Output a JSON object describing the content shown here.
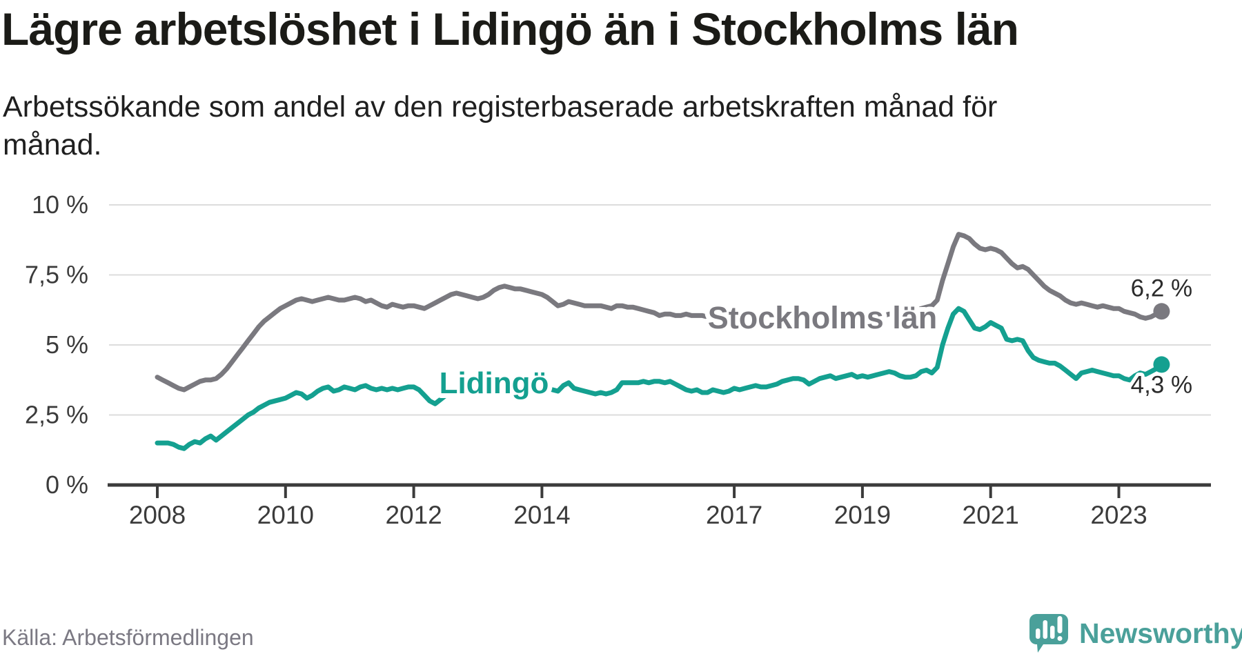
{
  "title": "Lägre arbetslöshet i Lidingö än i Stockholms län",
  "subtitle": "Arbetssökande som andel av den registerbaserade arbetskraften månad för\nmånad.",
  "source": "Källa: Arbetsförmedlingen",
  "logo": {
    "text": "Newsworthy",
    "color": "#4aa09a"
  },
  "colors": {
    "title": "#1b1b17",
    "axis_text": "#3b3b3b",
    "axis_line": "#3b3b3b",
    "gridline": "#dcdcdc",
    "stockholm_line": "#7a797f",
    "lidingo_line": "#14a090",
    "end_label_text": "#2b2b2b",
    "source_text": "#7b7983"
  },
  "chart_data": {
    "type": "line",
    "title": "Lägre arbetslöshet i Lidingö än i Stockholms län",
    "xlabel": "",
    "ylabel": "Arbetssökande som andel av den registerbaserade arbetskraften",
    "x_unit": "monthly from January 2008 to September 2023",
    "x_start_year": 2008,
    "x_months_per_step": 1,
    "ylim": [
      0,
      10
    ],
    "grid": true,
    "y_ticks": [
      {
        "value": 0,
        "label": "0 %"
      },
      {
        "value": 2.5,
        "label": "2,5 %"
      },
      {
        "value": 5,
        "label": "5 %"
      },
      {
        "value": 7.5,
        "label": "7,5 %"
      },
      {
        "value": 10,
        "label": "10 %"
      }
    ],
    "x_ticks": [
      {
        "year": 2008,
        "label": "2008"
      },
      {
        "year": 2010,
        "label": "2010"
      },
      {
        "year": 2012,
        "label": "2012"
      },
      {
        "year": 2014,
        "label": "2014"
      },
      {
        "year": 2017,
        "label": "2017"
      },
      {
        "year": 2019,
        "label": "2019"
      },
      {
        "year": 2021,
        "label": "2021"
      },
      {
        "year": 2023,
        "label": "2023"
      }
    ],
    "series": [
      {
        "name": "Stockholms län",
        "color": "#7a797f",
        "end_label": "6,2 %",
        "end_value": 6.2,
        "values": [
          3.85,
          3.75,
          3.65,
          3.55,
          3.45,
          3.4,
          3.5,
          3.6,
          3.7,
          3.75,
          3.75,
          3.8,
          3.95,
          4.15,
          4.4,
          4.65,
          4.9,
          5.15,
          5.4,
          5.65,
          5.85,
          6.0,
          6.15,
          6.3,
          6.4,
          6.5,
          6.6,
          6.65,
          6.6,
          6.55,
          6.6,
          6.65,
          6.7,
          6.65,
          6.6,
          6.6,
          6.65,
          6.7,
          6.65,
          6.55,
          6.6,
          6.5,
          6.4,
          6.35,
          6.45,
          6.4,
          6.35,
          6.4,
          6.4,
          6.35,
          6.3,
          6.4,
          6.5,
          6.6,
          6.7,
          6.8,
          6.85,
          6.8,
          6.75,
          6.7,
          6.65,
          6.7,
          6.8,
          6.95,
          7.05,
          7.1,
          7.05,
          7.0,
          7.0,
          6.95,
          6.9,
          6.85,
          6.8,
          6.7,
          6.55,
          6.4,
          6.45,
          6.55,
          6.5,
          6.45,
          6.4,
          6.4,
          6.4,
          6.4,
          6.35,
          6.3,
          6.4,
          6.4,
          6.35,
          6.35,
          6.3,
          6.25,
          6.2,
          6.15,
          6.05,
          6.1,
          6.1,
          6.05,
          6.05,
          6.1,
          6.05,
          6.05,
          6.05,
          6.0,
          6.0,
          5.95,
          5.95,
          5.95,
          5.95,
          5.9,
          5.9,
          5.85,
          5.85,
          5.8,
          5.8,
          5.8,
          5.75,
          5.75,
          5.75,
          5.75,
          5.75,
          5.7,
          5.7,
          5.65,
          5.65,
          5.7,
          5.7,
          5.75,
          5.75,
          5.8,
          5.85,
          5.9,
          5.95,
          6.0,
          6.0,
          6.05,
          6.05,
          6.1,
          6.1,
          6.15,
          6.15,
          6.2,
          6.25,
          6.3,
          6.35,
          6.4,
          6.6,
          7.3,
          7.9,
          8.5,
          8.95,
          8.9,
          8.8,
          8.6,
          8.45,
          8.4,
          8.45,
          8.4,
          8.3,
          8.1,
          7.9,
          7.75,
          7.8,
          7.7,
          7.5,
          7.3,
          7.1,
          6.95,
          6.85,
          6.75,
          6.6,
          6.5,
          6.45,
          6.5,
          6.45,
          6.4,
          6.35,
          6.4,
          6.35,
          6.3,
          6.3,
          6.2,
          6.15,
          6.1,
          6.0,
          5.95,
          6.0,
          6.1,
          6.2
        ]
      },
      {
        "name": "Lidingö",
        "color": "#14a090",
        "end_label": "4,3 %",
        "end_value": 4.3,
        "values": [
          1.5,
          1.5,
          1.5,
          1.45,
          1.35,
          1.3,
          1.45,
          1.55,
          1.5,
          1.65,
          1.75,
          1.6,
          1.75,
          1.9,
          2.05,
          2.2,
          2.35,
          2.5,
          2.6,
          2.75,
          2.85,
          2.95,
          3.0,
          3.05,
          3.1,
          3.2,
          3.3,
          3.25,
          3.1,
          3.2,
          3.35,
          3.45,
          3.5,
          3.35,
          3.4,
          3.5,
          3.45,
          3.4,
          3.5,
          3.55,
          3.45,
          3.4,
          3.45,
          3.4,
          3.45,
          3.4,
          3.45,
          3.5,
          3.5,
          3.4,
          3.2,
          3.0,
          2.9,
          3.05,
          3.2,
          3.3,
          3.4,
          3.45,
          3.4,
          3.45,
          3.5,
          3.45,
          3.5,
          3.55,
          3.5,
          3.45,
          3.5,
          3.55,
          3.5,
          3.55,
          3.5,
          3.55,
          3.5,
          3.45,
          3.4,
          3.35,
          3.55,
          3.65,
          3.45,
          3.4,
          3.35,
          3.3,
          3.25,
          3.3,
          3.25,
          3.3,
          3.4,
          3.65,
          3.65,
          3.65,
          3.65,
          3.7,
          3.65,
          3.7,
          3.7,
          3.65,
          3.7,
          3.6,
          3.5,
          3.4,
          3.35,
          3.4,
          3.3,
          3.3,
          3.4,
          3.35,
          3.3,
          3.35,
          3.45,
          3.4,
          3.45,
          3.5,
          3.55,
          3.5,
          3.5,
          3.55,
          3.6,
          3.7,
          3.75,
          3.8,
          3.8,
          3.75,
          3.6,
          3.7,
          3.8,
          3.85,
          3.9,
          3.8,
          3.85,
          3.9,
          3.95,
          3.85,
          3.9,
          3.85,
          3.9,
          3.95,
          4.0,
          4.05,
          4.0,
          3.9,
          3.85,
          3.85,
          3.9,
          4.05,
          4.1,
          4.0,
          4.2,
          5.0,
          5.6,
          6.1,
          6.3,
          6.2,
          5.9,
          5.6,
          5.55,
          5.65,
          5.8,
          5.7,
          5.6,
          5.2,
          5.15,
          5.2,
          5.15,
          4.8,
          4.55,
          4.45,
          4.4,
          4.35,
          4.35,
          4.25,
          4.1,
          3.95,
          3.8,
          4.0,
          4.05,
          4.1,
          4.05,
          4.0,
          3.95,
          3.9,
          3.9,
          3.8,
          3.75,
          3.9,
          4.0,
          3.95,
          4.05,
          4.15,
          4.3
        ]
      }
    ],
    "legend": "inline-labels-on-lines"
  }
}
